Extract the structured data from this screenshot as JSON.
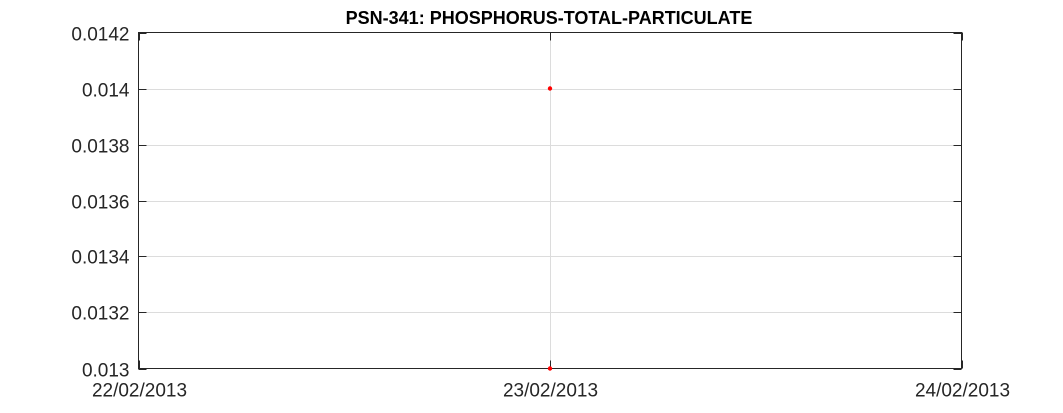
{
  "chart_data": {
    "type": "scatter",
    "title": "PSN-341: PHOSPHORUS-TOTAL-PARTICULATE",
    "xlabel": "",
    "ylabel": "",
    "x_ticks": [
      "22/02/2013",
      "23/02/2013",
      "24/02/2013"
    ],
    "xlim": [
      "22/02/2013",
      "24/02/2013"
    ],
    "y_ticks": [
      "0.013",
      "0.0132",
      "0.0134",
      "0.0136",
      "0.0138",
      "0.014",
      "0.0142"
    ],
    "ylim": [
      0.013,
      0.0142
    ],
    "grid": true,
    "series": [
      {
        "color": "#ff0000",
        "points": [
          {
            "x": "23/02/2013",
            "y": 0.014
          },
          {
            "x": "23/02/2013",
            "y": 0.013
          }
        ]
      }
    ]
  }
}
